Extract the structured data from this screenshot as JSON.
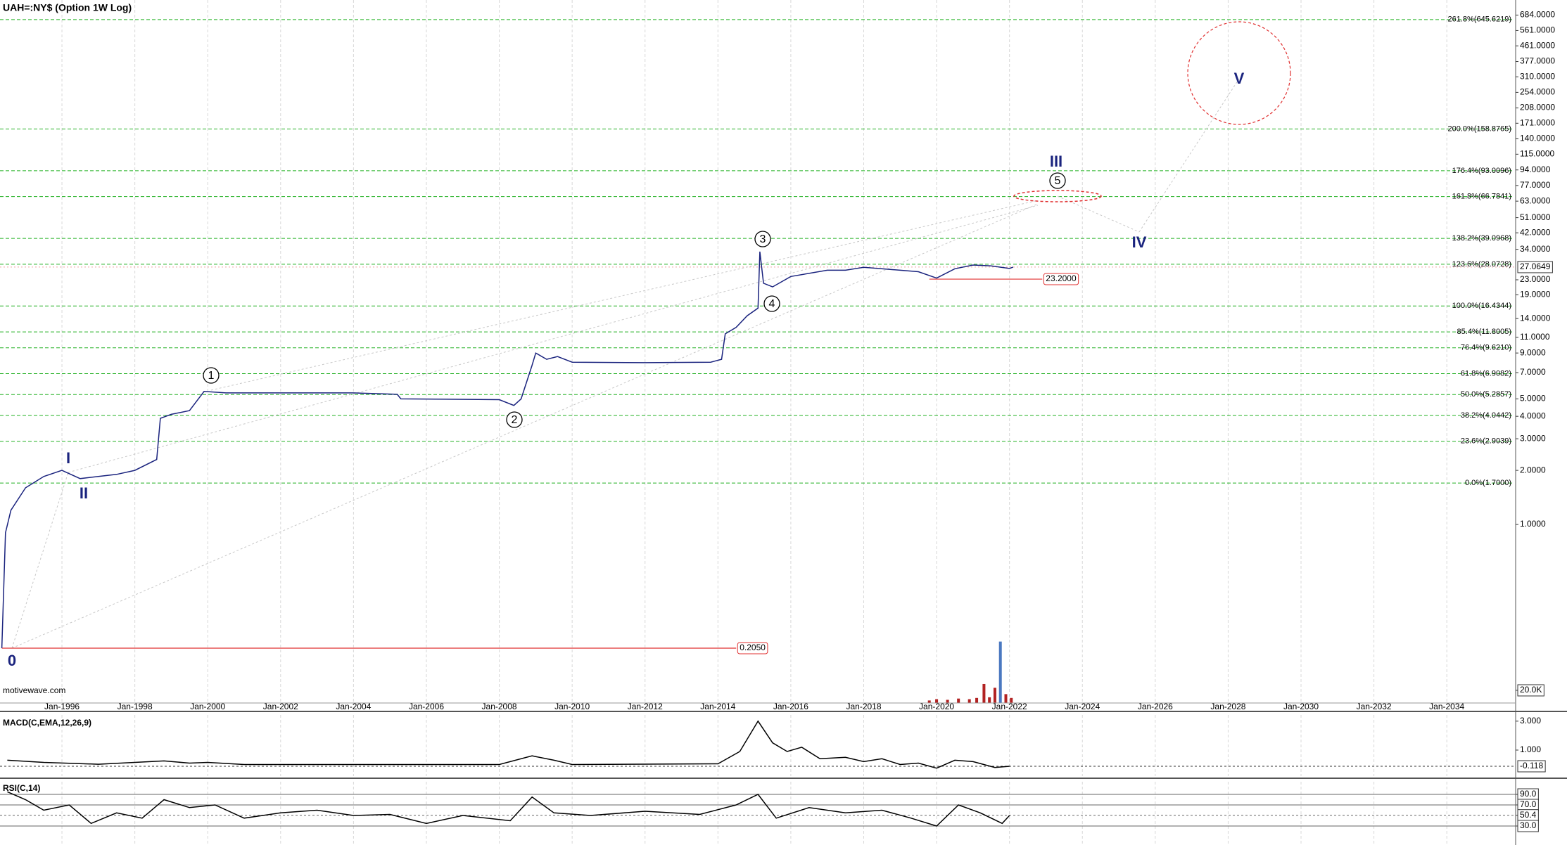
{
  "chart_data": [
    {
      "type": "line",
      "title": "UAH=:NY$ (Option 1W Log)",
      "watermark": "motivewave.com",
      "log_scale": true,
      "grid": true,
      "xlim": [
        1994.3,
        2035.85
      ],
      "xticks": [
        {
          "value": 1996,
          "label": "Jan-1996"
        },
        {
          "value": 1998,
          "label": "Jan-1998"
        },
        {
          "value": 2000,
          "label": "Jan-2000"
        },
        {
          "value": 2002,
          "label": "Jan-2002"
        },
        {
          "value": 2004,
          "label": "Jan-2004"
        },
        {
          "value": 2006,
          "label": "Jan-2006"
        },
        {
          "value": 2008,
          "label": "Jan-2008"
        },
        {
          "value": 2010,
          "label": "Jan-2010"
        },
        {
          "value": 2012,
          "label": "Jan-2012"
        },
        {
          "value": 2014,
          "label": "Jan-2014"
        },
        {
          "value": 2016,
          "label": "Jan-2016"
        },
        {
          "value": 2018,
          "label": "Jan-2018"
        },
        {
          "value": 2020,
          "label": "Jan-2020"
        },
        {
          "value": 2022,
          "label": "Jan-2022"
        },
        {
          "value": 2024,
          "label": "Jan-2024"
        },
        {
          "value": 2026,
          "label": "Jan-2026"
        },
        {
          "value": 2028,
          "label": "Jan-2028"
        },
        {
          "value": 2030,
          "label": "Jan-2030"
        },
        {
          "value": 2032,
          "label": "Jan-2032"
        },
        {
          "value": 2034,
          "label": "Jan-2034"
        }
      ],
      "ylim": [
        0.1015,
        829.6
      ],
      "yticks": [
        {
          "value": 684,
          "label": "684.0000"
        },
        {
          "value": 561,
          "label": "561.0000"
        },
        {
          "value": 461,
          "label": "461.0000"
        },
        {
          "value": 377,
          "label": "377.0000"
        },
        {
          "value": 310,
          "label": "310.0000"
        },
        {
          "value": 254,
          "label": "254.0000"
        },
        {
          "value": 208,
          "label": "208.0000"
        },
        {
          "value": 171,
          "label": "171.0000"
        },
        {
          "value": 140,
          "label": "140.0000"
        },
        {
          "value": 115,
          "label": "115.0000"
        },
        {
          "value": 94,
          "label": "94.0000"
        },
        {
          "value": 77,
          "label": "77.0000"
        },
        {
          "value": 63,
          "label": "63.0000"
        },
        {
          "value": 51,
          "label": "51.0000"
        },
        {
          "value": 42,
          "label": "42.0000"
        },
        {
          "value": 34,
          "label": "34.0000"
        },
        {
          "value": 23,
          "label": "23.0000"
        },
        {
          "value": 19,
          "label": "19.0000"
        },
        {
          "value": 14,
          "label": "14.0000"
        },
        {
          "value": 11,
          "label": "11.0000"
        },
        {
          "value": 9,
          "label": "9.0000"
        },
        {
          "value": 7,
          "label": "7.0000"
        },
        {
          "value": 5,
          "label": "5.0000"
        },
        {
          "value": 4,
          "label": "4.0000"
        },
        {
          "value": 3,
          "label": "3.0000"
        },
        {
          "value": 2,
          "label": "2.0000"
        },
        {
          "value": 1,
          "label": "1.0000"
        }
      ],
      "x": [
        1994.35,
        1994.45,
        1994.6,
        1995.0,
        1995.5,
        1996.0,
        1996.5,
        1997.0,
        1997.5,
        1998.0,
        1998.6,
        1998.7,
        1999.0,
        1999.5,
        1999.9,
        2000.5,
        2002.0,
        2004.0,
        2005.2,
        2005.3,
        2008.0,
        2008.4,
        2008.6,
        2008.9,
        2009.0,
        2009.3,
        2009.6,
        2010.0,
        2012.0,
        2013.8,
        2014.1,
        2014.2,
        2014.5,
        2014.8,
        2015.1,
        2015.15,
        2015.25,
        2015.5,
        2016.0,
        2017.0,
        2017.5,
        2018.0,
        2019.0,
        2019.5,
        2020.0,
        2020.5,
        2021.0,
        2021.5,
        2022.0,
        2022.1
      ],
      "series": [
        {
          "color": "#1a237e",
          "values": [
            0.205,
            0.9,
            1.2,
            1.6,
            1.85,
            2.0,
            1.8,
            1.85,
            1.9,
            2.0,
            2.3,
            3.9,
            4.1,
            4.3,
            5.5,
            5.4,
            5.4,
            5.4,
            5.3,
            5.0,
            4.95,
            4.6,
            5.0,
            7.7,
            9.0,
            8.3,
            8.6,
            8.0,
            7.95,
            8.0,
            8.3,
            11.5,
            12.5,
            14.5,
            16.0,
            33,
            22,
            21,
            24,
            26,
            26,
            27,
            26,
            25.5,
            23.5,
            26.5,
            27.8,
            27.5,
            26.6,
            27.0649
          ]
        }
      ],
      "last_value": {
        "value": 27.0649,
        "label": "27.0649"
      },
      "fib_color": "#22b022",
      "fib_levels": [
        {
          "value": 645.6219,
          "label": "261.8%(645.6219)"
        },
        {
          "value": 158.8765,
          "label": "200.0%(158.8765)"
        },
        {
          "value": 93.0096,
          "label": "176.4%(93.0096)"
        },
        {
          "value": 66.7841,
          "label": "161.8%(66.7841)"
        },
        {
          "value": 39.0968,
          "label": "138.2%(39.0968)"
        },
        {
          "value": 28.0728,
          "label": "123.6%(28.0728)"
        },
        {
          "value": 16.4344,
          "label": "100.0%(16.4344)"
        },
        {
          "value": 11.8005,
          "label": "85.4%(11.8005)"
        },
        {
          "value": 9.621,
          "label": "76.4%(9.6210)"
        },
        {
          "value": 6.9082,
          "label": "61.8%(6.9082)"
        },
        {
          "value": 5.2857,
          "label": "50.0%(5.2857)"
        },
        {
          "value": 4.0442,
          "label": "38.2%(4.0442)"
        },
        {
          "value": 2.9039,
          "label": "23.6%(2.9039)"
        },
        {
          "value": 1.7,
          "label": "0.0%(1.7000)"
        }
      ],
      "levels": [
        {
          "value": 23.2,
          "label": "23.2000",
          "from": 2019.8,
          "to": 2022.9
        },
        {
          "value": 0.205,
          "label": "0.2050",
          "from": 1994.35,
          "to": 2014.5
        }
      ],
      "level_color": "#e03030",
      "wave_labels": [
        "0",
        "I",
        "II",
        "1",
        "2",
        "3",
        "4",
        "5",
        "III",
        "IV",
        "V"
      ],
      "volume": {
        "color": "#b22222",
        "ylim": [
          0,
          111000
        ],
        "yticks": [
          {
            "value": 20000,
            "label": "20.0K"
          }
        ],
        "x": [
          2019.8,
          2020.0,
          2020.3,
          2020.6,
          2020.9,
          2021.1,
          2021.3,
          2021.45,
          2021.6,
          2021.75,
          2021.9,
          2022.05
        ],
        "values": [
          4000,
          6000,
          5000,
          7000,
          6000,
          8000,
          30000,
          9000,
          24000,
          97000,
          14000,
          8000
        ]
      }
    },
    {
      "type": "line",
      "title": "MACD(C,EMA,12,26,9)",
      "xlim": [
        1994.3,
        2035.85
      ],
      "ylim": [
        -0.8,
        3.43
      ],
      "yticks": [
        {
          "value": 3,
          "label": "3.000"
        },
        {
          "value": 1,
          "label": "1.000"
        }
      ],
      "last_value": {
        "value": -0.118,
        "label": "-0.118"
      },
      "x": [
        1994.5,
        1995.5,
        1997.0,
        1998.8,
        1999.5,
        2000.0,
        2001.0,
        2008.0,
        2008.9,
        2009.5,
        2010.0,
        2014.0,
        2014.6,
        2015.1,
        2015.5,
        2015.9,
        2016.3,
        2016.8,
        2017.5,
        2018.0,
        2018.5,
        2019.0,
        2019.5,
        2020.0,
        2020.5,
        2021.0,
        2021.6,
        2022.0
      ],
      "series": [
        {
          "color": "#000000",
          "values": [
            0.3,
            0.15,
            0.02,
            0.25,
            0.1,
            0.15,
            0.0,
            0.0,
            0.6,
            0.3,
            0.0,
            0.05,
            0.9,
            3.0,
            1.5,
            0.9,
            1.2,
            0.4,
            0.5,
            0.2,
            0.4,
            0.0,
            0.1,
            -0.25,
            0.3,
            0.2,
            -0.2,
            -0.118
          ]
        }
      ]
    },
    {
      "type": "line",
      "title": "RSI(C,14)",
      "xlim": [
        1994.3,
        2035.85
      ],
      "ylim": [
        -6,
        114
      ],
      "yticks": [
        {
          "value": 90,
          "label": "90.0"
        },
        {
          "value": 70,
          "label": "70.0"
        },
        {
          "value": 50.4,
          "label": "50.4"
        },
        {
          "value": 30,
          "label": "30.0"
        }
      ],
      "x": [
        1994.5,
        1995.0,
        1995.5,
        1996.2,
        1996.8,
        1997.5,
        1998.2,
        1998.8,
        1999.5,
        2000.2,
        2001.0,
        2002.0,
        2003.0,
        2004.0,
        2005.0,
        2006.0,
        2007.0,
        2008.3,
        2008.9,
        2009.5,
        2010.5,
        2012.0,
        2013.5,
        2014.5,
        2015.1,
        2015.6,
        2016.5,
        2017.5,
        2018.5,
        2019.3,
        2020.0,
        2020.6,
        2021.2,
        2021.8,
        2022.0
      ],
      "series": [
        {
          "color": "#000000",
          "values": [
            95,
            80,
            60,
            70,
            35,
            55,
            45,
            80,
            65,
            70,
            45,
            55,
            60,
            50,
            52,
            35,
            50,
            40,
            85,
            55,
            50,
            58,
            52,
            70,
            90,
            45,
            65,
            55,
            60,
            45,
            30,
            70,
            55,
            35,
            50
          ]
        }
      ]
    }
  ]
}
